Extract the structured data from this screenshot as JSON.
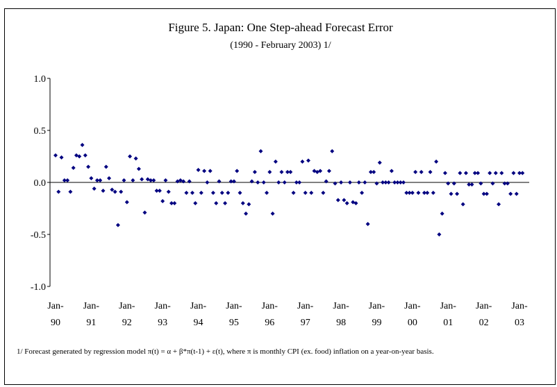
{
  "chart_data": {
    "type": "scatter",
    "title": "Figure 5. Japan: One Step-ahead Forecast Error",
    "subtitle": "(1990 - February 2003) 1/",
    "footnote": "1/ Forecast generated by regression model π(t) = α + β*π(t-1) + ε(t), where π is monthly CPI (ex. food) inflation on a year-on-year basis.",
    "categories": [
      "Jan-90",
      null,
      null,
      null,
      null,
      null,
      null,
      null,
      null,
      null,
      null,
      null,
      "Jan-91",
      null,
      null,
      null,
      null,
      null,
      null,
      null,
      null,
      null,
      null,
      null,
      "Jan-92",
      null,
      null,
      null,
      null,
      null,
      null,
      null,
      null,
      null,
      null,
      null,
      "Jan-93",
      null,
      null,
      null,
      null,
      null,
      null,
      null,
      null,
      null,
      null,
      null,
      "Jan-94",
      null,
      null,
      null,
      null,
      null,
      null,
      null,
      null,
      null,
      null,
      null,
      "Jan-95",
      null,
      null,
      null,
      null,
      null,
      null,
      null,
      null,
      null,
      null,
      null,
      "Jan-96",
      null,
      null,
      null,
      null,
      null,
      null,
      null,
      null,
      null,
      null,
      null,
      "Jan-97",
      null,
      null,
      null,
      null,
      null,
      null,
      null,
      null,
      null,
      null,
      null,
      "Jan-98",
      null,
      null,
      null,
      null,
      null,
      null,
      null,
      null,
      null,
      null,
      null,
      "Jan-99",
      null,
      null,
      null,
      null,
      null,
      null,
      null,
      null,
      null,
      null,
      null,
      "Jan-00",
      null,
      null,
      null,
      null,
      null,
      null,
      null,
      null,
      null,
      null,
      null,
      "Jan-01",
      null,
      null,
      null,
      null,
      null,
      null,
      null,
      null,
      null,
      null,
      null,
      "Jan-02",
      null,
      null,
      null,
      null,
      null,
      null,
      null,
      null,
      null,
      null,
      null,
      "Jan-03",
      null
    ],
    "values": [
      0.26,
      -0.09,
      0.24,
      0.02,
      0.02,
      -0.09,
      0.14,
      0.26,
      0.25,
      0.36,
      0.26,
      0.15,
      0.04,
      -0.06,
      0.02,
      0.02,
      -0.08,
      0.15,
      0.04,
      -0.07,
      -0.09,
      -0.41,
      -0.09,
      0.02,
      -0.19,
      0.25,
      0.02,
      0.23,
      0.13,
      0.03,
      -0.29,
      0.03,
      0.02,
      0.02,
      -0.08,
      -0.08,
      -0.18,
      0.02,
      -0.09,
      -0.2,
      -0.2,
      0.01,
      0.02,
      0.01,
      -0.1,
      0.01,
      -0.1,
      -0.2,
      0.12,
      -0.1,
      0.11,
      0.0,
      0.11,
      -0.1,
      -0.2,
      0.01,
      -0.1,
      -0.2,
      -0.1,
      0.01,
      0.01,
      0.11,
      -0.1,
      -0.2,
      -0.3,
      -0.21,
      0.01,
      0.1,
      0.0,
      0.3,
      0.0,
      -0.1,
      0.1,
      -0.3,
      0.2,
      0.0,
      0.1,
      0.0,
      0.1,
      0.1,
      -0.1,
      0.0,
      0.0,
      0.2,
      -0.1,
      0.21,
      -0.1,
      0.11,
      0.1,
      0.11,
      -0.1,
      0.01,
      0.11,
      0.3,
      -0.01,
      -0.17,
      0.0,
      -0.17,
      -0.2,
      0.0,
      -0.19,
      -0.2,
      0.0,
      -0.1,
      0.0,
      -0.4,
      0.1,
      0.1,
      -0.01,
      0.19,
      0.0,
      0.0,
      0.0,
      0.11,
      0.0,
      0.0,
      0.0,
      0.0,
      -0.1,
      -0.1,
      -0.1,
      0.1,
      -0.1,
      0.1,
      -0.1,
      -0.1,
      0.1,
      -0.1,
      0.2,
      -0.5,
      -0.3,
      0.09,
      -0.01,
      -0.11,
      -0.01,
      -0.11,
      0.09,
      -0.21,
      0.09,
      -0.02,
      -0.02,
      0.09,
      0.09,
      -0.01,
      -0.11,
      -0.11,
      0.09,
      -0.01,
      0.09,
      -0.21,
      0.09,
      -0.01,
      -0.01,
      -0.11,
      0.09,
      -0.11,
      0.09,
      0.09
    ],
    "color": "#000080",
    "ylim": [
      -1,
      1
    ],
    "yticks": [
      {
        "value": 1,
        "label": "1.0"
      },
      0.5,
      {
        "value": 0,
        "label": "0.0"
      },
      -0.5,
      {
        "value": -1,
        "label": "-1.0"
      }
    ],
    "grid": false
  }
}
